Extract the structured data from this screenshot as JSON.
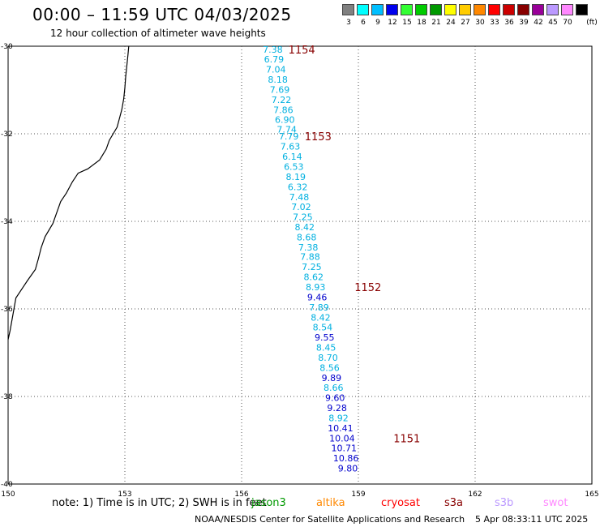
{
  "title": "00:00 – 11:59 UTC 04/03/2025",
  "subtitle": "12 hour collection of altimeter wave heights",
  "scale": {
    "unit_label": "(ft)",
    "items": [
      {
        "label": "3",
        "color": "#808080"
      },
      {
        "label": "6",
        "color": "#00ffff"
      },
      {
        "label": "9",
        "color": "#00bfff"
      },
      {
        "label": "12",
        "color": "#0000ee"
      },
      {
        "label": "15",
        "color": "#33ff33"
      },
      {
        "label": "18",
        "color": "#00cc00"
      },
      {
        "label": "21",
        "color": "#009900"
      },
      {
        "label": "24",
        "color": "#ffff00"
      },
      {
        "label": "27",
        "color": "#ffcc00"
      },
      {
        "label": "30",
        "color": "#ff8800"
      },
      {
        "label": "33",
        "color": "#ff0000"
      },
      {
        "label": "36",
        "color": "#cc0000"
      },
      {
        "label": "39",
        "color": "#880000"
      },
      {
        "label": "42",
        "color": "#990099"
      },
      {
        "label": "45",
        "color": "#bb99ff"
      },
      {
        "label": "70",
        "color": "#ff88ff"
      },
      {
        "label": "",
        "color": "#000000"
      }
    ]
  },
  "axes": {
    "lon_ticks": [
      "150",
      "153",
      "156",
      "159",
      "162",
      "165"
    ],
    "lat_ticks": [
      "-30",
      "-32",
      "-34",
      "-36",
      "-38",
      "-40"
    ]
  },
  "colors": {
    "cyan": "#00b0e0",
    "blue": "#0000cc",
    "label": "#880000"
  },
  "observations": [
    {
      "v": "7.38",
      "lon": 156.8,
      "lat": -30.07,
      "c": "cyan"
    },
    {
      "v": "6.79",
      "lon": 156.83,
      "lat": -30.3,
      "c": "cyan"
    },
    {
      "v": "7.04",
      "lon": 156.88,
      "lat": -30.53,
      "c": "cyan"
    },
    {
      "v": "8.18",
      "lon": 156.93,
      "lat": -30.76,
      "c": "cyan"
    },
    {
      "v": "7.69",
      "lon": 156.98,
      "lat": -30.99,
      "c": "cyan"
    },
    {
      "v": "7.22",
      "lon": 157.02,
      "lat": -31.22,
      "c": "cyan"
    },
    {
      "v": "7.86",
      "lon": 157.07,
      "lat": -31.45,
      "c": "cyan"
    },
    {
      "v": "6.90",
      "lon": 157.11,
      "lat": -31.68,
      "c": "cyan"
    },
    {
      "v": "7.74",
      "lon": 157.16,
      "lat": -31.9,
      "c": "cyan"
    },
    {
      "v": "7.79",
      "lon": 157.21,
      "lat": -32.06,
      "c": "cyan"
    },
    {
      "v": "7.63",
      "lon": 157.25,
      "lat": -32.29,
      "c": "cyan"
    },
    {
      "v": "6.14",
      "lon": 157.3,
      "lat": -32.52,
      "c": "cyan"
    },
    {
      "v": "6.53",
      "lon": 157.34,
      "lat": -32.75,
      "c": "cyan"
    },
    {
      "v": "8.19",
      "lon": 157.39,
      "lat": -32.98,
      "c": "cyan"
    },
    {
      "v": "6.32",
      "lon": 157.44,
      "lat": -33.21,
      "c": "cyan"
    },
    {
      "v": "7.48",
      "lon": 157.48,
      "lat": -33.44,
      "c": "cyan"
    },
    {
      "v": "7.02",
      "lon": 157.53,
      "lat": -33.67,
      "c": "cyan"
    },
    {
      "v": "7.25",
      "lon": 157.57,
      "lat": -33.9,
      "c": "cyan"
    },
    {
      "v": "8.42",
      "lon": 157.62,
      "lat": -34.13,
      "c": "cyan"
    },
    {
      "v": "8.68",
      "lon": 157.67,
      "lat": -34.36,
      "c": "cyan"
    },
    {
      "v": "7.38",
      "lon": 157.71,
      "lat": -34.59,
      "c": "cyan"
    },
    {
      "v": "7.88",
      "lon": 157.76,
      "lat": -34.81,
      "c": "cyan"
    },
    {
      "v": "7.25",
      "lon": 157.8,
      "lat": -35.04,
      "c": "cyan"
    },
    {
      "v": "8.62",
      "lon": 157.85,
      "lat": -35.27,
      "c": "cyan"
    },
    {
      "v": "8.93",
      "lon": 157.9,
      "lat": -35.5,
      "c": "cyan"
    },
    {
      "v": "9.46",
      "lon": 157.94,
      "lat": -35.73,
      "c": "blue"
    },
    {
      "v": "7.89",
      "lon": 157.99,
      "lat": -35.96,
      "c": "cyan"
    },
    {
      "v": "8.42",
      "lon": 158.03,
      "lat": -36.19,
      "c": "cyan"
    },
    {
      "v": "8.54",
      "lon": 158.08,
      "lat": -36.42,
      "c": "cyan"
    },
    {
      "v": "9.55",
      "lon": 158.13,
      "lat": -36.65,
      "c": "blue"
    },
    {
      "v": "8.45",
      "lon": 158.17,
      "lat": -36.88,
      "c": "cyan"
    },
    {
      "v": "8.70",
      "lon": 158.22,
      "lat": -37.11,
      "c": "cyan"
    },
    {
      "v": "8.56",
      "lon": 158.26,
      "lat": -37.34,
      "c": "cyan"
    },
    {
      "v": "9.89",
      "lon": 158.31,
      "lat": -37.57,
      "c": "blue"
    },
    {
      "v": "8.66",
      "lon": 158.36,
      "lat": -37.8,
      "c": "cyan"
    },
    {
      "v": "9.60",
      "lon": 158.4,
      "lat": -38.03,
      "c": "blue"
    },
    {
      "v": "9.28",
      "lon": 158.45,
      "lat": -38.26,
      "c": "blue"
    },
    {
      "v": "8.92",
      "lon": 158.49,
      "lat": -38.49,
      "c": "cyan"
    },
    {
      "v": "10.41",
      "lon": 158.54,
      "lat": -38.72,
      "c": "blue"
    },
    {
      "v": "10.04",
      "lon": 158.58,
      "lat": -38.95,
      "c": "blue"
    },
    {
      "v": "10.71",
      "lon": 158.63,
      "lat": -39.18,
      "c": "blue"
    },
    {
      "v": "10.86",
      "lon": 158.68,
      "lat": -39.41,
      "c": "blue"
    },
    {
      "v": "9.80",
      "lon": 158.73,
      "lat": -39.64,
      "c": "blue"
    }
  ],
  "time_labels": [
    {
      "t": "1154",
      "lon": 157.2,
      "lat": -30.07
    },
    {
      "t": "1153",
      "lon": 157.62,
      "lat": -32.06
    },
    {
      "t": "1152",
      "lon": 158.9,
      "lat": -35.5
    },
    {
      "t": "1151",
      "lon": 159.9,
      "lat": -38.95
    }
  ],
  "coastline": [
    [
      153.1,
      -30.0
    ],
    [
      153.08,
      -30.2
    ],
    [
      153.05,
      -30.45
    ],
    [
      153.02,
      -30.7
    ],
    [
      153.0,
      -30.95
    ],
    [
      152.97,
      -31.2
    ],
    [
      152.92,
      -31.45
    ],
    [
      152.86,
      -31.65
    ],
    [
      152.8,
      -31.85
    ],
    [
      152.7,
      -32.0
    ],
    [
      152.6,
      -32.15
    ],
    [
      152.52,
      -32.35
    ],
    [
      152.35,
      -32.6
    ],
    [
      152.05,
      -32.8
    ],
    [
      151.8,
      -32.9
    ],
    [
      151.65,
      -33.1
    ],
    [
      151.5,
      -33.35
    ],
    [
      151.35,
      -33.55
    ],
    [
      151.25,
      -33.8
    ],
    [
      151.15,
      -34.05
    ],
    [
      150.95,
      -34.35
    ],
    [
      150.85,
      -34.6
    ],
    [
      150.78,
      -34.85
    ],
    [
      150.7,
      -35.1
    ],
    [
      150.5,
      -35.35
    ],
    [
      150.35,
      -35.55
    ],
    [
      150.2,
      -35.75
    ],
    [
      150.15,
      -36.0
    ],
    [
      150.1,
      -36.25
    ],
    [
      150.05,
      -36.5
    ],
    [
      150.0,
      -36.7
    ]
  ],
  "note": "note: 1) Time is in UTC; 2) SWH is in feet",
  "satellites": [
    {
      "name": "jason3",
      "color": "#009900"
    },
    {
      "name": "altika",
      "color": "#ff8800"
    },
    {
      "name": "cryosat",
      "color": "#ff0000"
    },
    {
      "name": "s3a",
      "color": "#880000"
    },
    {
      "name": "s3b",
      "color": "#bb99ff"
    },
    {
      "name": "swot",
      "color": "#ff88ff"
    }
  ],
  "credit": "NOAA/NESDIS Center for Satellite Applications and Research",
  "timestamp": "5 Apr 08:33:11 UTC 2025"
}
